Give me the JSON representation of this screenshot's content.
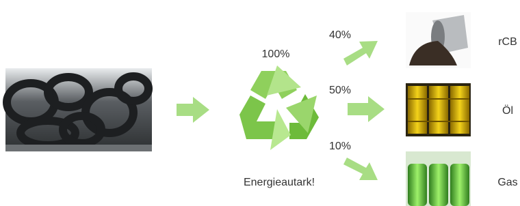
{
  "center": {
    "share": "100%",
    "caption": "Energieautark!"
  },
  "outputs": [
    {
      "share": "40%",
      "label": "rCB"
    },
    {
      "share": "50%",
      "label": "Öl"
    },
    {
      "share": "10%",
      "label": "Gas"
    }
  ]
}
